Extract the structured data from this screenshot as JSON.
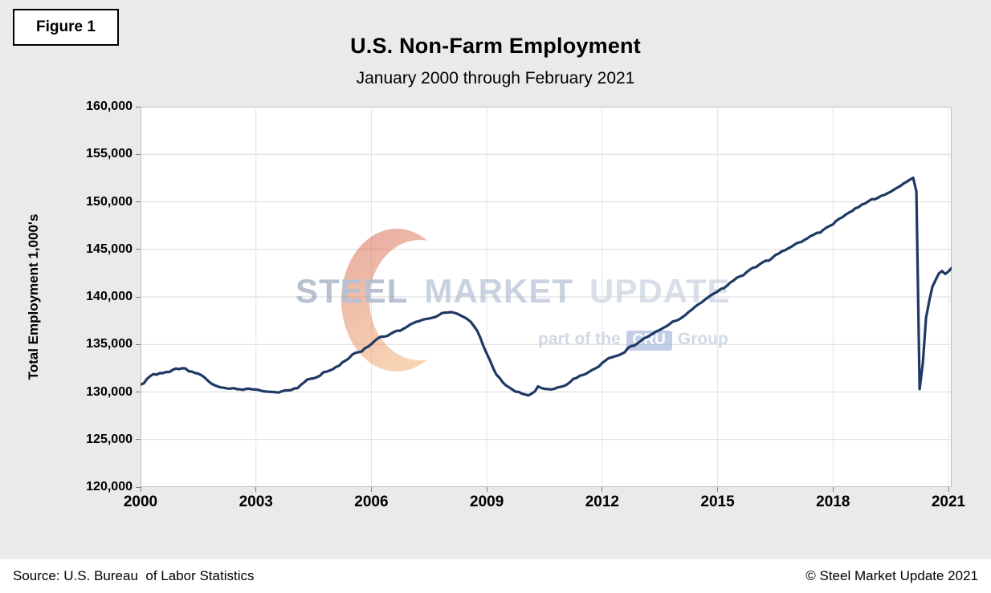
{
  "figure_label": "Figure 1",
  "title": "U.S. Non-Farm Employment",
  "subtitle": "January 2000 through February 2021",
  "footer": {
    "source": "Source: U.S. Bureau  of Labor Statistics",
    "copyright": "© Steel Market Update 2021"
  },
  "watermark": {
    "word1": "STEEL",
    "word2": "MARKET",
    "word3": "UPDATE",
    "tagline_prefix": "part of the",
    "tagline_badge": "CRU",
    "tagline_suffix": "Group"
  },
  "chart_data": {
    "type": "line",
    "title": "U.S. Non-Farm Employment",
    "subtitle": "January 2000 through February 2021",
    "xlabel": "",
    "ylabel": "Total Employment 1,000's",
    "ylim": [
      120000,
      160000
    ],
    "grid": true,
    "legend": "none",
    "line_color": "#1F3864",
    "x_start": "2000-01",
    "x_end": "2021-02",
    "x_frequency": "monthly",
    "y_ticks": [
      {
        "value": 120000,
        "label": "120,000"
      },
      {
        "value": 125000,
        "label": "125,000"
      },
      {
        "value": 130000,
        "label": "130,000"
      },
      {
        "value": 135000,
        "label": "135,000"
      },
      {
        "value": 140000,
        "label": "140,000"
      },
      {
        "value": 145000,
        "label": "145,000"
      },
      {
        "value": 150000,
        "label": "150,000"
      },
      {
        "value": 155000,
        "label": "155,000"
      },
      {
        "value": 160000,
        "label": "160,000"
      }
    ],
    "x_ticks": [
      {
        "index": 0,
        "label": "2000"
      },
      {
        "index": 36,
        "label": "2003"
      },
      {
        "index": 72,
        "label": "2006"
      },
      {
        "index": 108,
        "label": "2009"
      },
      {
        "index": 144,
        "label": "2012"
      },
      {
        "index": 180,
        "label": "2015"
      },
      {
        "index": 216,
        "label": "2018"
      },
      {
        "index": 252,
        "label": "2021"
      }
    ],
    "values": [
      130781,
      130900,
      131377,
      131665,
      131881,
      131823,
      131985,
      131982,
      132107,
      132101,
      132324,
      132460,
      132416,
      132500,
      132469,
      132184,
      132141,
      132001,
      131922,
      131762,
      131518,
      131193,
      130901,
      130723,
      130591,
      130482,
      130450,
      130364,
      130357,
      130404,
      130303,
      130280,
      130225,
      130341,
      130350,
      130268,
      130261,
      130203,
      130096,
      130047,
      130022,
      130008,
      129983,
      129941,
      130055,
      130158,
      130177,
      130201,
      130372,
      130417,
      130753,
      131003,
      131310,
      131391,
      131438,
      131562,
      131720,
      132067,
      132131,
      132263,
      132399,
      132639,
      132774,
      133134,
      133309,
      133555,
      133926,
      134121,
      134186,
      134270,
      134607,
      134765,
      135041,
      135356,
      135638,
      135816,
      135827,
      135902,
      136118,
      136301,
      136449,
      136446,
      136652,
      136828,
      137072,
      137230,
      137387,
      137461,
      137606,
      137673,
      137733,
      137817,
      137902,
      138080,
      138293,
      138350,
      138365,
      138403,
      138315,
      138201,
      138019,
      137858,
      137648,
      137375,
      136922,
      136446,
      135677,
      134779,
      134031,
      133335,
      132510,
      131820,
      131473,
      131007,
      130694,
      130482,
      130257,
      130033,
      129997,
      129814,
      129735,
      129640,
      129828,
      130061,
      130587,
      130423,
      130327,
      130313,
      130260,
      130329,
      130472,
      130543,
      130617,
      130785,
      131044,
      131377,
      131479,
      131708,
      131798,
      131920,
      132142,
      132347,
      132495,
      132699,
      133053,
      133309,
      133552,
      133648,
      133758,
      133846,
      134003,
      134168,
      134604,
      134829,
      134875,
      135118,
      135361,
      135641,
      135782,
      135985,
      136184,
      136385,
      136534,
      136736,
      136900,
      137137,
      137412,
      137496,
      137639,
      137861,
      138113,
      138420,
      138665,
      138971,
      139219,
      139429,
      139695,
      139940,
      140202,
      140371,
      140577,
      140843,
      140935,
      141195,
      141521,
      141728,
      142014,
      142168,
      142273,
      142583,
      142854,
      143064,
      143139,
      143398,
      143630,
      143802,
      143814,
      144088,
      144396,
      144540,
      144784,
      144903,
      145085,
      145275,
      145504,
      145702,
      145763,
      145966,
      146163,
      146406,
      146542,
      146744,
      146758,
      147066,
      147294,
      147470,
      147627,
      148001,
      148225,
      148396,
      148666,
      148876,
      149042,
      149324,
      149432,
      149709,
      149825,
      150052,
      150266,
      150271,
      150418,
      150634,
      150719,
      150901,
      151066,
      151273,
      151481,
      151666,
      151927,
      152111,
      152334,
      152523,
      151090,
      130303,
      133028,
      137810,
      139570,
      141063,
      141774,
      142454,
      142718,
      142411,
      142669,
      143048
    ]
  }
}
